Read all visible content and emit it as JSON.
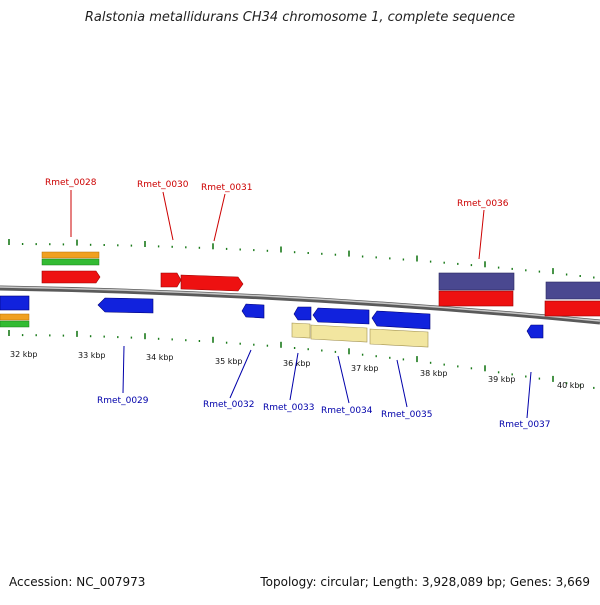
{
  "title": "Ralstonia metallidurans CH34 chromosome 1, complete sequence",
  "footer": {
    "accession": "Accession: NC_007973",
    "summary": "Topology: circular; Length: 3,928,089 bp; Genes: 3,669"
  },
  "colors": {
    "forward_gene": "#ee1111",
    "reverse_gene": "#1122dd",
    "forward_label": "#cc0000",
    "reverse_label": "#0000aa",
    "tick": "#1a7a1a",
    "backbone": "#777777",
    "orange_feature": "#f0a020",
    "green_feature": "#33bb33",
    "purple_feature": "#4a4890",
    "pale_feature": "#f2e6a0"
  },
  "scale_labels": [
    "32 kbp",
    "33 kbp",
    "34 kbp",
    "35 kbp",
    "36 kbp",
    "37 kbp",
    "38 kbp",
    "39 kbp",
    "40 kbp"
  ],
  "genes": {
    "forward": [
      "Rmet_0028",
      "Rmet_0030",
      "Rmet_0031",
      "Rmet_0036"
    ],
    "reverse": [
      "Rmet_0029",
      "Rmet_0032",
      "Rmet_0033",
      "Rmet_0034",
      "Rmet_0035",
      "Rmet_0037"
    ]
  }
}
